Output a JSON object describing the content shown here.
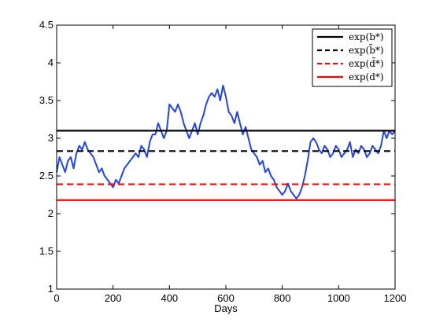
{
  "chart_data": {
    "type": "line",
    "title": "",
    "xlabel": "Days",
    "ylabel": "",
    "xlim": [
      0,
      1200
    ],
    "ylim": [
      1,
      4.5
    ],
    "xticks": [
      0,
      200,
      400,
      600,
      800,
      1000,
      1200
    ],
    "yticks": [
      1,
      1.5,
      2,
      2.5,
      3,
      3.5,
      4,
      4.5
    ],
    "grid": false,
    "legend_position": "top-right",
    "thresholds": [
      {
        "name": "exp(b*)",
        "value": 3.1,
        "color": "#000000",
        "dash": "solid"
      },
      {
        "name": "exp(b̃*)",
        "value": 2.83,
        "color": "#000000",
        "dash": "dashed"
      },
      {
        "name": "exp(d̃*)",
        "value": 2.39,
        "color": "#ff0000",
        "dash": "dashed"
      },
      {
        "name": "exp(d*)",
        "value": 2.18,
        "color": "#ff0000",
        "dash": "solid"
      }
    ],
    "series": [
      {
        "color": "#2244ee",
        "x": [
          0,
          10,
          20,
          30,
          40,
          50,
          60,
          70,
          80,
          90,
          100,
          110,
          120,
          130,
          140,
          150,
          160,
          170,
          180,
          190,
          200,
          210,
          220,
          230,
          240,
          250,
          260,
          270,
          280,
          290,
          300,
          310,
          320,
          330,
          340,
          350,
          360,
          370,
          380,
          390,
          400,
          410,
          420,
          430,
          440,
          450,
          460,
          470,
          480,
          490,
          500,
          510,
          520,
          530,
          540,
          550,
          560,
          570,
          580,
          590,
          600,
          610,
          620,
          630,
          640,
          650,
          660,
          670,
          680,
          690,
          700,
          710,
          720,
          730,
          740,
          750,
          760,
          770,
          780,
          790,
          800,
          810,
          820,
          830,
          840,
          850,
          860,
          870,
          880,
          890,
          900,
          910,
          920,
          930,
          940,
          950,
          960,
          970,
          980,
          990,
          1000,
          1010,
          1020,
          1030,
          1040,
          1050,
          1060,
          1070,
          1080,
          1090,
          1100,
          1110,
          1120,
          1130,
          1140,
          1150,
          1160,
          1170,
          1180,
          1190,
          1200
        ],
        "y": [
          2.55,
          2.75,
          2.65,
          2.55,
          2.7,
          2.75,
          2.6,
          2.8,
          2.9,
          2.85,
          2.95,
          2.85,
          2.8,
          2.75,
          2.65,
          2.55,
          2.6,
          2.5,
          2.45,
          2.4,
          2.35,
          2.45,
          2.4,
          2.5,
          2.6,
          2.65,
          2.7,
          2.75,
          2.8,
          2.75,
          2.9,
          2.85,
          2.75,
          2.95,
          3.05,
          3.05,
          3.2,
          3.1,
          3.0,
          3.1,
          3.45,
          3.4,
          3.35,
          3.45,
          3.35,
          3.2,
          3.1,
          3.0,
          3.1,
          3.2,
          3.05,
          3.2,
          3.3,
          3.45,
          3.55,
          3.6,
          3.55,
          3.65,
          3.5,
          3.7,
          3.55,
          3.35,
          3.3,
          3.2,
          3.35,
          3.2,
          3.05,
          3.15,
          3.0,
          2.85,
          2.8,
          2.75,
          2.65,
          2.7,
          2.55,
          2.6,
          2.5,
          2.45,
          2.35,
          2.3,
          2.25,
          2.3,
          2.4,
          2.3,
          2.25,
          2.2,
          2.25,
          2.35,
          2.5,
          2.7,
          2.95,
          3.0,
          2.95,
          2.85,
          2.8,
          2.9,
          2.85,
          2.75,
          2.8,
          2.9,
          2.85,
          2.75,
          2.8,
          2.85,
          2.95,
          2.75,
          2.85,
          2.8,
          2.9,
          2.85,
          2.75,
          2.8,
          2.9,
          2.85,
          2.8,
          2.9,
          3.1,
          3.0,
          3.1,
          3.05,
          3.1
        ]
      }
    ]
  }
}
